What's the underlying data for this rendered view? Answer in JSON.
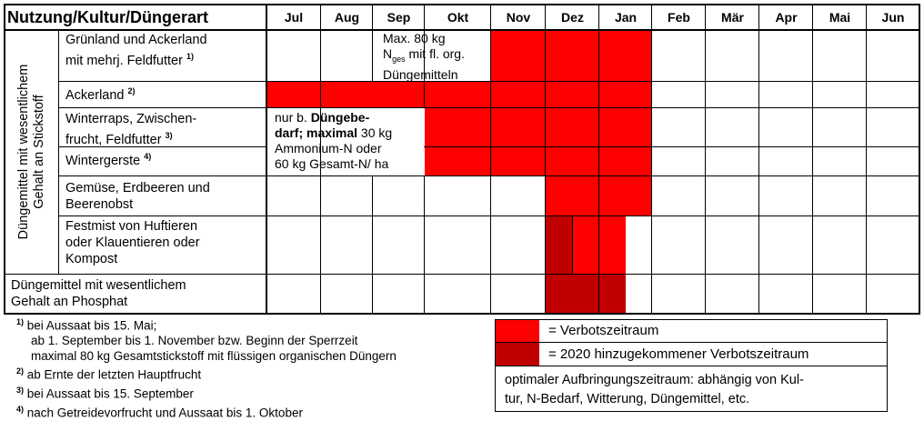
{
  "header": {
    "title": "Nutzung/Kultur/Düngerart",
    "months": [
      "Jul",
      "Aug",
      "Sep",
      "Okt",
      "Nov",
      "Dez",
      "Jan",
      "Feb",
      "Mär",
      "Apr",
      "Mai",
      "Jun"
    ]
  },
  "side_label": [
    "Düngemittel mit wesentlichem",
    "Gehalt an Stickstoff"
  ],
  "rows": {
    "gruenland": [
      "Grünland und Ackerland",
      "mit mehrj. Feldfutter"
    ],
    "gruenland_sup": "1)",
    "ackerland": "Ackerland",
    "ackerland_sup": "2)",
    "winterraps": [
      "Winterraps, Zwischen-",
      "frucht, Feldfutter"
    ],
    "winterraps_sup": "3)",
    "wintergerste": "Wintergerste",
    "wintergerste_sup": "4)",
    "gemuese": [
      "Gemüse, Erdbeeren und",
      "Beerenobst"
    ],
    "festmist": [
      "Festmist von Huftieren",
      "oder Klauentieren oder",
      "Kompost"
    ],
    "phosphat": [
      "Düngemittel mit wesentlichem",
      "Gehalt an Phosphat"
    ]
  },
  "notes": {
    "max80_line1": "Max. 80 kg",
    "max80_n": "N",
    "max80_sub": "ges",
    "max80_line2_rest": " mit fl. org.",
    "max80_line3": "Düngemitteln",
    "nurb_a": "nur b. ",
    "nurb_b": "Düngebe-",
    "nurb_c": "darf; maximal",
    "nurb_d": " 30 kg",
    "nurb_line3": "Ammonium-N oder",
    "nurb_line4": "60 kg Gesamt-N/ ha"
  },
  "footnotes": {
    "f1_mark": "1)",
    "f1_line1": "bei Aussaat bis 15. Mai;",
    "f1_line2": "ab 1. September bis 1. November bzw. Beginn der Sperrzeit",
    "f1_line3": "maximal 80 kg Gesamtstickstoff mit flüssigen organischen Düngern",
    "f2_mark": "2)",
    "f2_text": "ab Ernte der letzten Hauptfrucht",
    "f3_mark": "3)",
    "f3_text": "bei Aussaat bis 15. September",
    "f4_mark": "4)",
    "f4_text": "nach Getreidevorfrucht und Aussaat bis 1. Oktober"
  },
  "legend": {
    "verbot": "= Verbotszeitraum",
    "neu2020": "= 2020 hinzugekommener  Verbotszeitraum",
    "optimal_line1": "optimaler  Aufbringungszeitraum:  abhängig  von  Kul-",
    "optimal_line2": "tur,  N-Bedarf,  Witterung,  Düngemittel,  etc."
  },
  "colors": {
    "verbot": "#ff0000",
    "neu2020": "#c00000"
  }
}
